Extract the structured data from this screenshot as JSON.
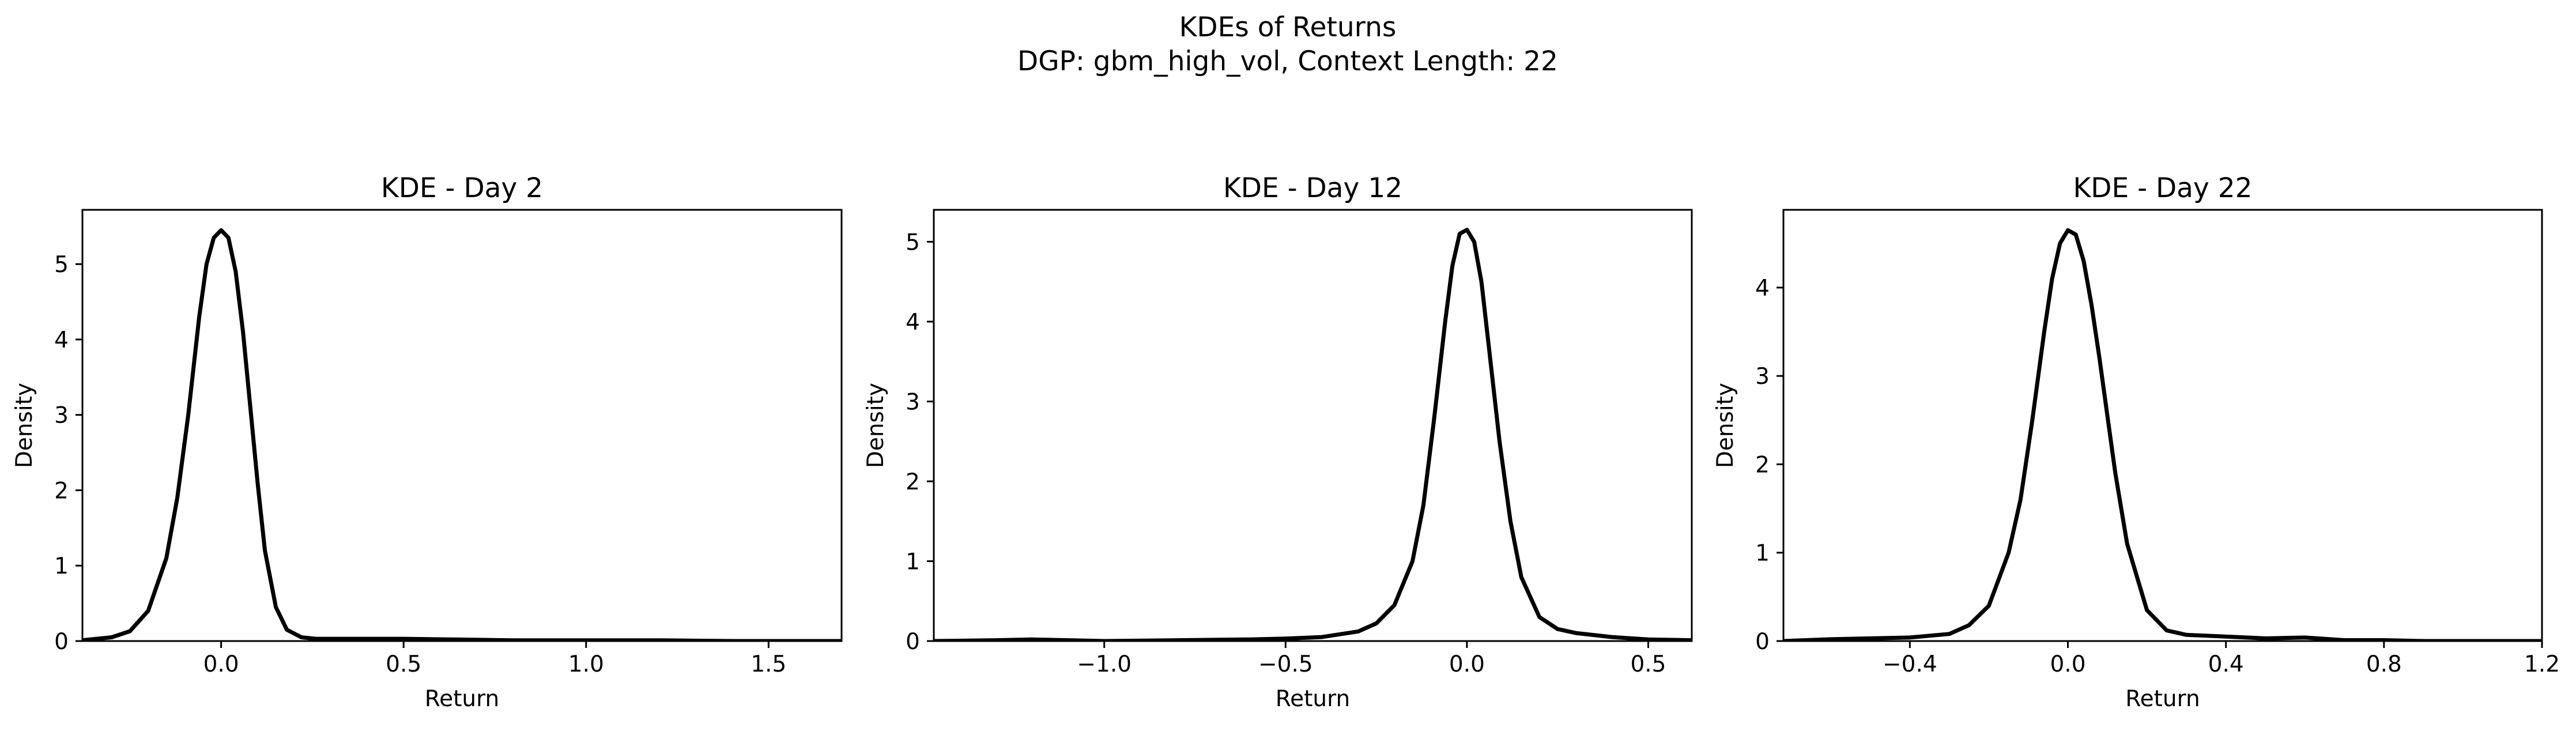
{
  "figure": {
    "title_line1": "KDEs of Returns",
    "title_line2": "DGP: gbm_high_vol, Context Length: 22"
  },
  "chart_data": [
    {
      "type": "line",
      "title": "KDE - Day 2",
      "xlabel": "Return",
      "ylabel": "Density",
      "xlim": [
        -0.38,
        1.7
      ],
      "ylim": [
        0,
        5.72
      ],
      "xticks": [
        0.0,
        0.5,
        1.0,
        1.5
      ],
      "xtick_labels": [
        "0.0",
        "0.5",
        "1.0",
        "1.5"
      ],
      "yticks": [
        0,
        1,
        2,
        3,
        4,
        5
      ],
      "ytick_labels": [
        "0",
        "1",
        "2",
        "3",
        "4",
        "5"
      ],
      "grid": false,
      "series": [
        {
          "color": "#000000",
          "x": [
            -0.38,
            -0.3,
            -0.25,
            -0.2,
            -0.15,
            -0.12,
            -0.09,
            -0.06,
            -0.04,
            -0.02,
            0.0,
            0.02,
            0.04,
            0.06,
            0.08,
            0.1,
            0.12,
            0.15,
            0.18,
            0.22,
            0.26,
            0.35,
            0.5,
            0.65,
            0.8,
            1.0,
            1.2,
            1.4,
            1.7
          ],
          "y": [
            0.01,
            0.05,
            0.13,
            0.4,
            1.1,
            1.9,
            3.0,
            4.3,
            5.0,
            5.35,
            5.45,
            5.35,
            4.9,
            4.1,
            3.1,
            2.1,
            1.2,
            0.45,
            0.15,
            0.05,
            0.03,
            0.03,
            0.03,
            0.02,
            0.01,
            0.01,
            0.01,
            0.0,
            0.0
          ]
        }
      ]
    },
    {
      "type": "line",
      "title": "KDE - Day 12",
      "xlabel": "Return",
      "ylabel": "Density",
      "xlim": [
        -1.47,
        0.62
      ],
      "ylim": [
        0,
        5.4
      ],
      "xticks": [
        -1.0,
        -0.5,
        0.0,
        0.5
      ],
      "xtick_labels": [
        "−1.0",
        "−0.5",
        "0.0",
        "0.5"
      ],
      "yticks": [
        0,
        1,
        2,
        3,
        4,
        5
      ],
      "ytick_labels": [
        "0",
        "1",
        "2",
        "3",
        "4",
        "5"
      ],
      "grid": false,
      "series": [
        {
          "color": "#000000",
          "x": [
            -1.47,
            -1.3,
            -1.2,
            -1.0,
            -0.8,
            -0.6,
            -0.5,
            -0.4,
            -0.3,
            -0.25,
            -0.2,
            -0.15,
            -0.12,
            -0.09,
            -0.06,
            -0.04,
            -0.02,
            0.0,
            0.02,
            0.04,
            0.06,
            0.09,
            0.12,
            0.15,
            0.2,
            0.25,
            0.3,
            0.4,
            0.5,
            0.62
          ],
          "y": [
            0.0,
            0.01,
            0.02,
            0.0,
            0.01,
            0.02,
            0.03,
            0.05,
            0.12,
            0.22,
            0.45,
            1.0,
            1.7,
            2.8,
            4.0,
            4.7,
            5.1,
            5.15,
            5.0,
            4.5,
            3.7,
            2.5,
            1.5,
            0.8,
            0.3,
            0.15,
            0.1,
            0.05,
            0.02,
            0.01
          ]
        }
      ]
    },
    {
      "type": "line",
      "title": "KDE - Day 22",
      "xlabel": "Return",
      "ylabel": "Density",
      "xlim": [
        -0.72,
        1.2
      ],
      "ylim": [
        0,
        4.88
      ],
      "xticks": [
        -0.4,
        0.0,
        0.4,
        0.8,
        1.2
      ],
      "xtick_labels": [
        "−0.4",
        "0.0",
        "0.4",
        "0.8",
        "1.2"
      ],
      "yticks": [
        0,
        1,
        2,
        3,
        4
      ],
      "ytick_labels": [
        "0",
        "1",
        "2",
        "3",
        "4"
      ],
      "grid": false,
      "series": [
        {
          "color": "#000000",
          "x": [
            -0.72,
            -0.6,
            -0.5,
            -0.4,
            -0.3,
            -0.25,
            -0.2,
            -0.15,
            -0.12,
            -0.09,
            -0.06,
            -0.04,
            -0.02,
            0.0,
            0.02,
            0.04,
            0.06,
            0.08,
            0.1,
            0.12,
            0.15,
            0.2,
            0.25,
            0.3,
            0.35,
            0.4,
            0.5,
            0.6,
            0.7,
            0.8,
            0.9,
            1.0,
            1.1,
            1.2
          ],
          "y": [
            0.0,
            0.02,
            0.03,
            0.04,
            0.08,
            0.18,
            0.4,
            1.0,
            1.6,
            2.5,
            3.5,
            4.1,
            4.5,
            4.65,
            4.6,
            4.3,
            3.8,
            3.2,
            2.55,
            1.9,
            1.1,
            0.35,
            0.12,
            0.07,
            0.06,
            0.05,
            0.03,
            0.04,
            0.01,
            0.01,
            0.0,
            0.0,
            0.0,
            0.0
          ]
        }
      ]
    }
  ]
}
